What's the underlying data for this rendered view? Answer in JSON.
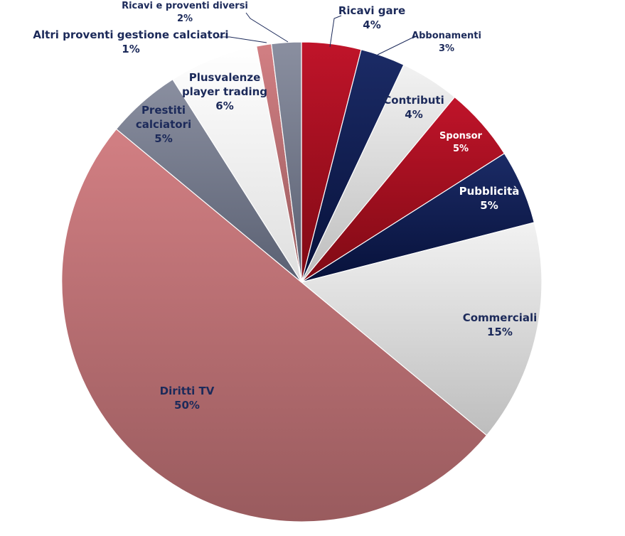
{
  "chart_data": {
    "type": "pie",
    "title": "",
    "series": [
      {
        "label": "Ricavi gare",
        "value": 4,
        "percent_label": "4%",
        "color": "#a8101e",
        "label_color": "#1c2a5a"
      },
      {
        "label": "Abbonamenti",
        "value": 3,
        "percent_label": "3%",
        "color": "#0d1c4f",
        "label_color": "#1c2a5a"
      },
      {
        "label": "Contributi",
        "value": 4,
        "percent_label": "4%",
        "color": "#dcdcdc",
        "label_color": "#1c2a5a"
      },
      {
        "label": "Sponsor",
        "value": 5,
        "percent_label": "5%",
        "color": "#a8101e",
        "label_color": "#ffffff"
      },
      {
        "label": "Pubblicità",
        "value": 5,
        "percent_label": "5%",
        "color": "#0d1c4f",
        "label_color": "#ffffff"
      },
      {
        "label": "Commerciali",
        "value": 15,
        "percent_label": "15%",
        "color": "#dcdcdc",
        "label_color": "#1c2a5a"
      },
      {
        "label": "Diritti TV",
        "value": 50,
        "percent_label": "50%",
        "color": "#bd6e72",
        "label_color": "#1c2a5a"
      },
      {
        "label": "Prestiti calciatori",
        "value": 5,
        "percent_label": "5%",
        "color": "#6c7283",
        "label_color": "#1c2a5a"
      },
      {
        "label": "Plusvalenze player trading",
        "value": 6,
        "percent_label": "6%",
        "color": "#eeeeee",
        "label_color": "#1c2a5a"
      },
      {
        "label": "Altri proventi gestione calciatori",
        "value": 1,
        "percent_label": "1%",
        "color": "#c87b7e",
        "label_color": "#1c2a5a"
      },
      {
        "label": "Ricavi e proventi diversi",
        "value": 2,
        "percent_label": "2%",
        "color": "#717585",
        "label_color": "#1c2a5a"
      }
    ],
    "legend": "none",
    "data_labels": "outside and inside slices with leader lines"
  }
}
